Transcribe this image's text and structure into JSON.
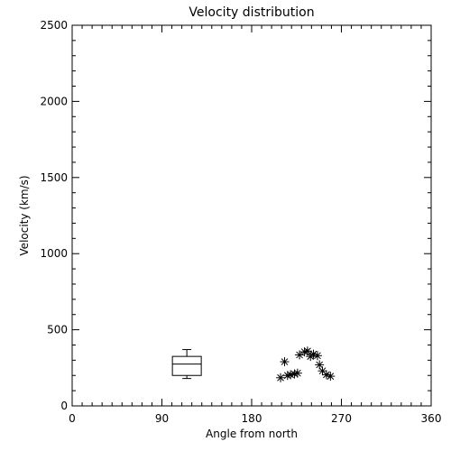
{
  "chart_data": {
    "type": "scatter",
    "title": "Velocity distribution",
    "xlabel": "Angle from north",
    "ylabel": "Velocity (km/s)",
    "xlim": [
      0,
      360
    ],
    "ylim": [
      0,
      2500
    ],
    "x_ticks": [
      0,
      90,
      180,
      270,
      360
    ],
    "y_ticks": [
      0,
      500,
      1000,
      1500,
      2000,
      2500
    ],
    "grid": false,
    "marker": "asterisk",
    "points": [
      {
        "x": 209,
        "y": 185
      },
      {
        "x": 213,
        "y": 290
      },
      {
        "x": 216,
        "y": 200
      },
      {
        "x": 219,
        "y": 205
      },
      {
        "x": 223,
        "y": 210
      },
      {
        "x": 226,
        "y": 215
      },
      {
        "x": 228,
        "y": 335
      },
      {
        "x": 233,
        "y": 355
      },
      {
        "x": 236,
        "y": 360
      },
      {
        "x": 239,
        "y": 325
      },
      {
        "x": 242,
        "y": 340
      },
      {
        "x": 246,
        "y": 330
      },
      {
        "x": 248,
        "y": 270
      },
      {
        "x": 251,
        "y": 230
      },
      {
        "x": 255,
        "y": 205
      },
      {
        "x": 259,
        "y": 195
      }
    ],
    "boxplot": {
      "x": 115,
      "whisker_low": 180,
      "q1": 200,
      "median": 275,
      "q3": 325,
      "whisker_high": 370
    }
  }
}
